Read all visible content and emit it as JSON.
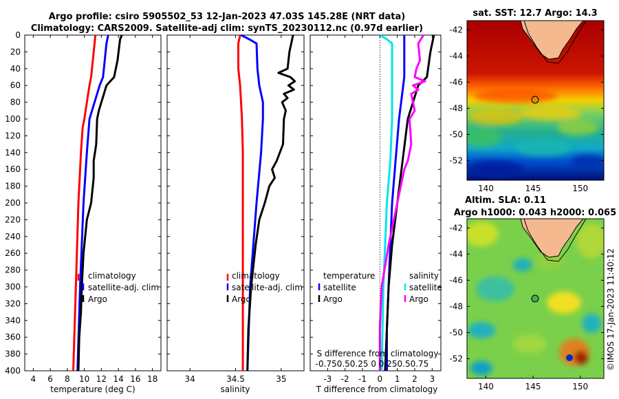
{
  "title_line1": "Argo profile: csiro 5905502_53 12-Jan-2023 47.03S 145.28E (NRT data)",
  "title_line2": "Climatology: CARS2009. Satellite-adj clim: synTS_20230112.nc (0.97d earlier)",
  "timestamp": "©IMOS 17-Jan-2023 11:40:12",
  "colors": {
    "climatology": "#ff0000",
    "satellite": "#0000ff",
    "argo": "#000000",
    "sal_satellite": "#00e6e6",
    "sal_argo": "#ff00ff"
  },
  "chart_data": [
    {
      "type": "line",
      "name": "temperature-panel",
      "xlabel": "temperature (deg C)",
      "ylabel": "",
      "xlim": [
        3,
        19
      ],
      "ylim": [
        400,
        0
      ],
      "xticks": [
        4,
        6,
        8,
        10,
        12,
        14,
        16,
        18
      ],
      "yticks": [
        0,
        20,
        40,
        60,
        80,
        100,
        120,
        140,
        160,
        180,
        200,
        220,
        240,
        260,
        280,
        300,
        320,
        340,
        360,
        380,
        400
      ],
      "legend": [
        "climatology",
        "satellite-adj. clim",
        "Argo"
      ],
      "series": [
        {
          "name": "climatology",
          "color": "climatology",
          "depth": [
            0,
            10,
            30,
            50,
            60,
            80,
            100,
            110,
            140,
            200,
            300,
            400
          ],
          "values": [
            11.3,
            11.2,
            11.0,
            10.8,
            10.6,
            10.3,
            10.0,
            9.8,
            9.6,
            9.3,
            9.0,
            8.7
          ]
        },
        {
          "name": "satellite-adj. clim",
          "color": "satellite",
          "depth": [
            0,
            10,
            30,
            50,
            60,
            80,
            100,
            140,
            200,
            300,
            400
          ],
          "values": [
            12.8,
            12.6,
            12.4,
            12.2,
            11.8,
            11.2,
            10.6,
            10.3,
            9.9,
            9.5,
            9.2
          ]
        },
        {
          "name": "Argo",
          "color": "argo",
          "depth": [
            0,
            5,
            30,
            50,
            60,
            70,
            80,
            90,
            100,
            130,
            150,
            170,
            200,
            220,
            230,
            260,
            300,
            330,
            360,
            400
          ],
          "values": [
            14.4,
            14.2,
            13.9,
            13.5,
            12.6,
            12.3,
            12.0,
            11.7,
            11.5,
            11.4,
            11.1,
            11.1,
            10.8,
            10.3,
            10.2,
            9.9,
            9.7,
            9.6,
            9.4,
            9.3
          ]
        }
      ]
    },
    {
      "type": "line",
      "name": "salinity-panel",
      "xlabel": "salinity",
      "ylabel": "",
      "xlim": [
        33.75,
        35.25
      ],
      "ylim": [
        400,
        0
      ],
      "xticks": [
        34,
        34.5,
        35
      ],
      "xticklabels": [
        "34",
        "34.5",
        "35"
      ],
      "legend": [
        "climatology",
        "satellite-adj. clim",
        "Argo"
      ],
      "series": [
        {
          "name": "climatology",
          "color": "climatology",
          "depth": [
            0,
            10,
            40,
            60,
            80,
            100,
            140,
            200,
            300,
            400
          ],
          "values": [
            34.55,
            34.53,
            34.53,
            34.55,
            34.56,
            34.57,
            34.58,
            34.58,
            34.58,
            34.58
          ]
        },
        {
          "name": "satellite-adj. clim",
          "color": "satellite",
          "depth": [
            0,
            5,
            10,
            40,
            60,
            80,
            100,
            140,
            200,
            300,
            400
          ],
          "values": [
            34.56,
            34.65,
            34.73,
            34.74,
            34.76,
            34.8,
            34.8,
            34.78,
            34.73,
            34.66,
            34.63
          ]
        },
        {
          "name": "Argo",
          "color": "argo",
          "depth": [
            0,
            20,
            40,
            45,
            50,
            55,
            60,
            65,
            70,
            75,
            80,
            90,
            100,
            130,
            150,
            160,
            170,
            180,
            200,
            220,
            250,
            300,
            350,
            400
          ],
          "values": [
            35.13,
            35.09,
            35.07,
            34.97,
            35.1,
            35.15,
            35.08,
            35.14,
            35.03,
            35.07,
            35.01,
            35.05,
            35.03,
            35.02,
            34.95,
            34.9,
            34.93,
            34.87,
            34.82,
            34.76,
            34.72,
            34.67,
            34.64,
            34.63
          ]
        }
      ]
    },
    {
      "type": "line",
      "name": "difference-panel",
      "xlabel": "T difference from climatology",
      "xlabel2": "S difference from climatology",
      "xlim": [
        -4,
        3.5
      ],
      "ylim": [
        400,
        0
      ],
      "xticks": [
        -3,
        -2,
        -1,
        0,
        1,
        2,
        3
      ],
      "s_ticklabels": "-0.750.50.25 0 0.250.50.75",
      "legend_groups": [
        "temperature",
        "salinity"
      ],
      "legend": [
        "satellite",
        "Argo",
        "satellite",
        "Argo"
      ],
      "series": [
        {
          "name": "temperature satellite",
          "color": "satellite",
          "depth": [
            0,
            10,
            50,
            100,
            150,
            200,
            250,
            300,
            350,
            400
          ],
          "values": [
            1.4,
            1.4,
            1.4,
            1.1,
            0.9,
            0.7,
            0.6,
            0.5,
            0.4,
            0.4
          ]
        },
        {
          "name": "temperature Argo",
          "color": "argo",
          "depth": [
            0,
            20,
            50,
            60,
            80,
            100,
            150,
            200,
            250,
            300,
            350,
            400
          ],
          "values": [
            3.1,
            2.9,
            2.7,
            2.2,
            1.9,
            1.6,
            1.3,
            1.0,
            0.7,
            0.5,
            0.4,
            0.3
          ]
        },
        {
          "name": "salinity satellite",
          "color": "sal_satellite",
          "depth": [
            0,
            5,
            10,
            50,
            100,
            150,
            200,
            300,
            400
          ],
          "values": [
            0,
            0.4,
            0.7,
            0.7,
            0.7,
            0.6,
            0.4,
            0.2,
            0.1
          ]
        },
        {
          "name": "salinity Argo",
          "color": "sal_argo",
          "depth": [
            0,
            10,
            30,
            40,
            50,
            55,
            60,
            65,
            70,
            80,
            90,
            100,
            130,
            150,
            160,
            180,
            200,
            250,
            300,
            350,
            400
          ],
          "values": [
            2.5,
            2.2,
            2.3,
            2.1,
            2.0,
            2.6,
            1.9,
            2.2,
            1.8,
            1.9,
            2.0,
            1.7,
            1.8,
            1.6,
            1.4,
            1.2,
            1.0,
            0.5,
            0.1,
            0.0,
            0.0
          ]
        }
      ]
    },
    {
      "type": "heatmap",
      "name": "sst-map",
      "title": "sat. SST: 12.7 Argo: 14.3",
      "xlim": [
        138,
        152.5
      ],
      "ylim": [
        -53.5,
        -41.3
      ],
      "xticks": [
        140,
        145,
        150
      ],
      "yticks": [
        -42,
        -44,
        -46,
        -48,
        -50,
        -52
      ],
      "marker": {
        "lon": 145.28,
        "lat": -47.03
      }
    },
    {
      "type": "heatmap",
      "name": "sla-map",
      "title": "Altim. SLA: 0.11",
      "subtitle": "Argo h1000: 0.043 h2000: 0.065",
      "xlim": [
        138,
        152.5
      ],
      "ylim": [
        -53.5,
        -41.3
      ],
      "xticks": [
        140,
        145,
        150
      ],
      "yticks": [
        -42,
        -44,
        -46,
        -48,
        -50,
        -52
      ],
      "marker": {
        "lon": 145.28,
        "lat": -47.03
      }
    }
  ]
}
